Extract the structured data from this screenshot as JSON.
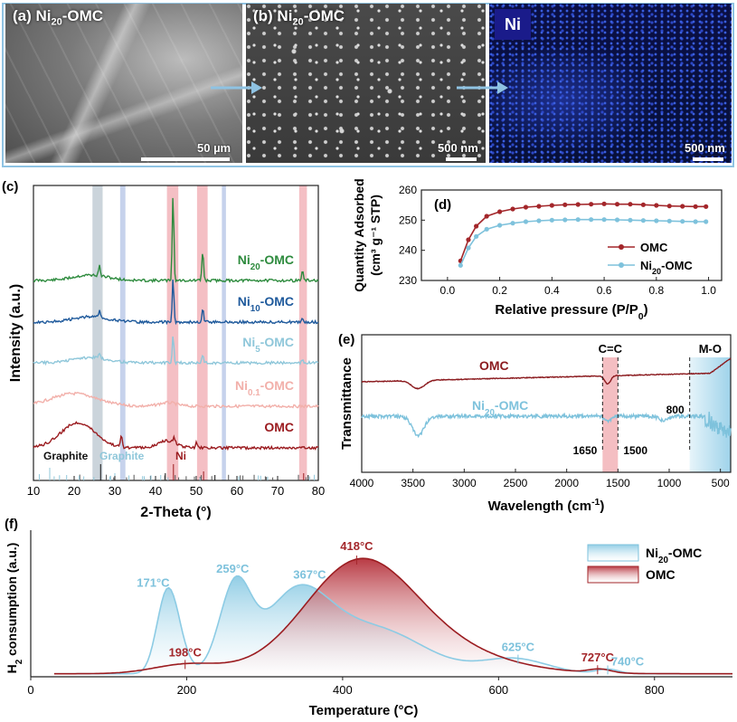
{
  "sem": {
    "panel_a": {
      "label_prefix": "(a) Ni",
      "label_sub": "20",
      "label_suffix": "-OMC",
      "scale": "50 µm"
    },
    "panel_b": {
      "label_prefix": "(b) Ni",
      "label_sub": "20",
      "label_suffix": "-OMC",
      "scale": "500 nm"
    },
    "panel_ni": {
      "label": "Ni",
      "scale": "500 nm"
    }
  },
  "chart_data": [
    {
      "id": "c",
      "type": "line",
      "panel_label": "(c)",
      "xlabel": "2-Theta (°)",
      "ylabel": "Intensity (a.u.)",
      "xlim": [
        10,
        80
      ],
      "xticks": [
        10,
        20,
        30,
        40,
        50,
        60,
        70,
        80
      ],
      "highlight_bands": [
        {
          "from": 24.5,
          "to": 27.0,
          "color": "#b9c6cf"
        },
        {
          "from": 31.3,
          "to": 32.6,
          "color": "#b3c3e6"
        },
        {
          "from": 42.8,
          "to": 45.6,
          "color": "#f0aab0"
        },
        {
          "from": 50.2,
          "to": 52.8,
          "color": "#f0aab0"
        },
        {
          "from": 56.3,
          "to": 57.3,
          "color": "#b3c3e6"
        },
        {
          "from": 75.3,
          "to": 77.2,
          "color": "#f0aab0"
        }
      ],
      "series": [
        {
          "name": "Ni20-OMC",
          "label_prefix": "Ni",
          "label_sub": "20",
          "label_suffix": "-OMC",
          "color": "#2e8b3e",
          "peaks": [
            {
              "x": 26.2,
              "h": 0.12
            },
            {
              "x": 44.3,
              "h": 1.0
            },
            {
              "x": 51.6,
              "h": 0.35
            },
            {
              "x": 76.1,
              "h": 0.12
            }
          ]
        },
        {
          "name": "Ni10-OMC",
          "label_prefix": "Ni",
          "label_sub": "10",
          "label_suffix": "-OMC",
          "color": "#1f5a9c",
          "peaks": [
            {
              "x": 26.2,
              "h": 0.08
            },
            {
              "x": 44.3,
              "h": 0.5
            },
            {
              "x": 51.6,
              "h": 0.16
            },
            {
              "x": 76.1,
              "h": 0.05
            }
          ]
        },
        {
          "name": "Ni5-OMC",
          "label_prefix": "Ni",
          "label_sub": "5",
          "label_suffix": "-OMC",
          "color": "#8fc7da",
          "peaks": [
            {
              "x": 26.2,
              "h": 0.05
            },
            {
              "x": 44.3,
              "h": 0.32
            },
            {
              "x": 51.6,
              "h": 0.1
            },
            {
              "x": 76.1,
              "h": 0.03
            }
          ]
        },
        {
          "name": "Ni0.1-OMC",
          "label_prefix": "Ni",
          "label_sub": "0.1",
          "label_suffix": "-OMC",
          "color": "#f2b0aa",
          "peaks": []
        },
        {
          "name": "OMC",
          "label_prefix": "OMC",
          "label_sub": "",
          "label_suffix": "",
          "color": "#9b1c20",
          "peaks": [
            {
              "x": 31.6,
              "h": 0.12
            },
            {
              "x": 44.6,
              "h": 0.06
            },
            {
              "x": 50.0,
              "h": 0.06
            }
          ]
        }
      ],
      "reference_labels": [
        {
          "text": "Graphite",
          "color": "#111111"
        },
        {
          "text": "Graphite",
          "color": "#8fc7da"
        },
        {
          "text": "Ni",
          "color": "#9b1c20"
        }
      ]
    },
    {
      "id": "d",
      "type": "line",
      "panel_label": "(d)",
      "xlabel_prefix": "Relative pressure (P/P",
      "xlabel_sub": "0",
      "xlabel_suffix": ")",
      "ylabel": "Quantity Adsorbed",
      "ylabel2": "(cm³ g⁻¹ STP)",
      "xlim": [
        -0.1,
        1.05
      ],
      "ylim": [
        230,
        260
      ],
      "xticks": [
        0.0,
        0.2,
        0.4,
        0.6,
        0.8,
        1.0
      ],
      "yticks": [
        230,
        240,
        250,
        260
      ],
      "series": [
        {
          "name": "OMC",
          "color": "#a3262a",
          "x": [
            0.05,
            0.08,
            0.11,
            0.15,
            0.2,
            0.25,
            0.3,
            0.35,
            0.4,
            0.45,
            0.5,
            0.55,
            0.6,
            0.65,
            0.7,
            0.75,
            0.8,
            0.85,
            0.9,
            0.95,
            0.99
          ],
          "y": [
            236.5,
            243.5,
            248.0,
            251.3,
            252.8,
            253.7,
            254.3,
            254.6,
            254.9,
            255.1,
            255.2,
            255.3,
            255.4,
            255.3,
            255.3,
            255.1,
            254.9,
            254.7,
            254.6,
            254.5,
            254.5
          ]
        },
        {
          "name": "Ni20-OMC",
          "label_prefix": "Ni",
          "label_sub": "20",
          "label_suffix": "-OMC",
          "color": "#7ec2dc",
          "x": [
            0.05,
            0.08,
            0.11,
            0.15,
            0.2,
            0.25,
            0.3,
            0.35,
            0.4,
            0.45,
            0.5,
            0.55,
            0.6,
            0.65,
            0.7,
            0.75,
            0.8,
            0.85,
            0.9,
            0.95,
            0.99
          ],
          "y": [
            235.0,
            240.8,
            244.6,
            247.0,
            248.3,
            249.0,
            249.5,
            249.8,
            250.0,
            250.1,
            250.2,
            250.2,
            250.2,
            250.1,
            250.0,
            249.9,
            249.8,
            249.7,
            249.6,
            249.5,
            249.5
          ]
        }
      ]
    },
    {
      "id": "e",
      "type": "line",
      "panel_label": "(e)",
      "xlabel_prefix": "Wavelength (cm",
      "xlabel_sup": "-1",
      "xlabel_suffix": ")",
      "ylabel": "Transmittance",
      "xlim": [
        4000,
        400
      ],
      "xticks": [
        4000,
        3500,
        3000,
        2500,
        2000,
        1500,
        1000,
        500
      ],
      "bands": [
        {
          "label": "C=C",
          "from": 1650,
          "to": 1500,
          "color": "#f0a8ae"
        },
        {
          "label": "M-O",
          "from": 800,
          "to": 400,
          "color": "#9fd3ea"
        }
      ],
      "markers": [
        {
          "text": "1650",
          "x": 1650
        },
        {
          "text": "1500",
          "x": 1500
        },
        {
          "text": "800",
          "x": 800
        }
      ],
      "series": [
        {
          "name": "OMC",
          "color": "#8b1a1e"
        },
        {
          "name": "Ni20-OMC",
          "label_prefix": "Ni",
          "label_sub": "20",
          "label_suffix": "-OMC",
          "color": "#7ec2dc"
        }
      ]
    },
    {
      "id": "f",
      "type": "area",
      "panel_label": "(f)",
      "xlabel": "Temperature (°C)",
      "ylabel_prefix": "H",
      "ylabel_sub": "2",
      "ylabel_suffix": " consumption (a.u.)",
      "xlim": [
        0,
        900
      ],
      "xticks": [
        0,
        200,
        400,
        600,
        800
      ],
      "series": [
        {
          "name": "Ni20-OMC",
          "label_prefix": "Ni",
          "label_sub": "20",
          "label_suffix": "-OMC",
          "color": "#7ec2dc",
          "peaks": [
            {
              "x": 171,
              "label": "171°C"
            },
            {
              "x": 259,
              "label": "259°C"
            },
            {
              "x": 367,
              "label": "367°C"
            },
            {
              "x": 625,
              "label": "625°C"
            },
            {
              "x": 740,
              "label": "740°C"
            }
          ]
        },
        {
          "name": "OMC",
          "color": "#a3262a",
          "peaks": [
            {
              "x": 198,
              "label": "198°C"
            },
            {
              "x": 418,
              "label": "418°C"
            },
            {
              "x": 727,
              "label": "727°C"
            }
          ]
        }
      ]
    }
  ]
}
